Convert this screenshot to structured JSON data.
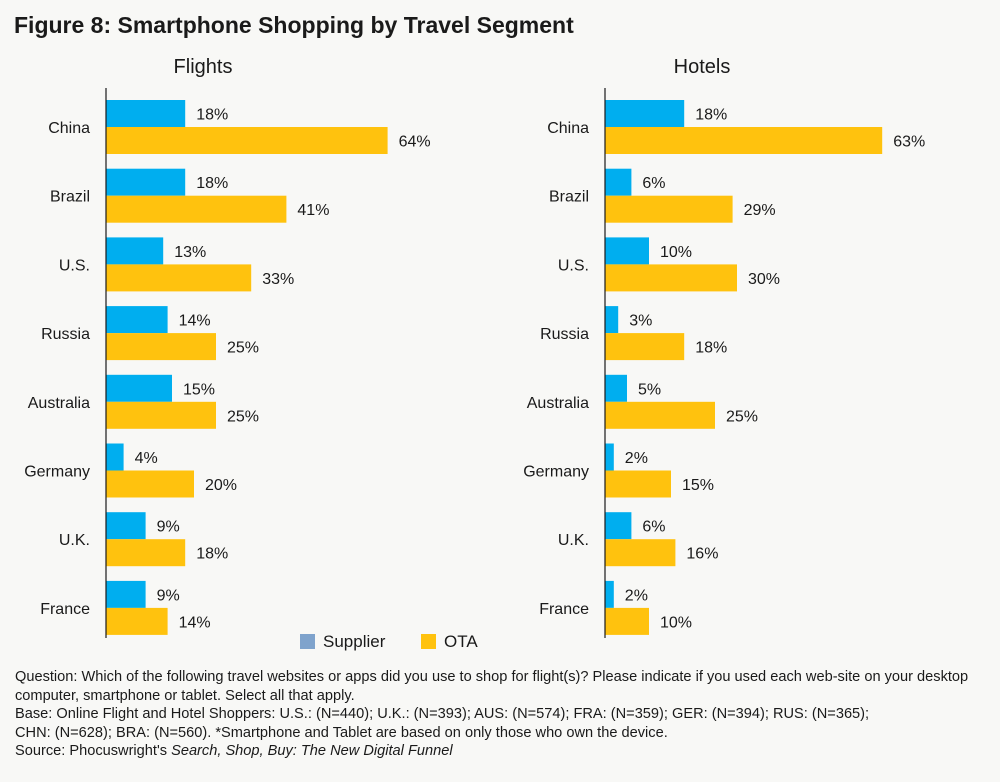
{
  "title": "Figure 8: Smartphone Shopping by Travel Segment",
  "colors": {
    "supplier": "#00AEEF",
    "ota": "#FFC20E",
    "legend_supplier": "#7FA3CC",
    "axis": "#1a1a1a"
  },
  "legend": {
    "supplier": "Supplier",
    "ota": "OTA"
  },
  "chart_data": [
    {
      "type": "bar",
      "orientation": "horizontal",
      "title": "Flights",
      "categories": [
        "China",
        "Brazil",
        "U.S.",
        "Russia",
        "Australia",
        "Germany",
        "U.K.",
        "France"
      ],
      "series": [
        {
          "name": "Supplier",
          "values": [
            18,
            18,
            13,
            14,
            15,
            4,
            9,
            9
          ],
          "labels": [
            "18%",
            "18%",
            "13%",
            "14%",
            "15%",
            "4%",
            "9%",
            "9%"
          ]
        },
        {
          "name": "OTA",
          "values": [
            64,
            41,
            33,
            25,
            25,
            20,
            18,
            14
          ],
          "labels": [
            "64%",
            "41%",
            "33%",
            "25%",
            "25%",
            "20%",
            "18%",
            "14%"
          ]
        }
      ],
      "xlim": [
        0,
        100
      ]
    },
    {
      "type": "bar",
      "orientation": "horizontal",
      "title": "Hotels",
      "categories": [
        "China",
        "Brazil",
        "U.S.",
        "Russia",
        "Australia",
        "Germany",
        "U.K.",
        "France"
      ],
      "series": [
        {
          "name": "Supplier",
          "values": [
            18,
            6,
            10,
            3,
            5,
            2,
            6,
            2
          ],
          "labels": [
            "18%",
            "6%",
            "10%",
            "3%",
            "5%",
            "2%",
            "6%",
            "2%"
          ]
        },
        {
          "name": "OTA",
          "values": [
            63,
            29,
            30,
            18,
            25,
            15,
            16,
            10
          ],
          "labels": [
            "63%",
            "29%",
            "30%",
            "18%",
            "25%",
            "15%",
            "16%",
            "10%"
          ]
        }
      ],
      "xlim": [
        0,
        100
      ]
    }
  ],
  "notes": {
    "question": "Question: Which of the following travel websites or apps did you use to shop for flight(s)? Please indicate if you used each web-site on your desktop computer, smartphone or tablet. Select all that apply.",
    "base_1": "Base: Online Flight and Hotel Shoppers: U.S.: (N=440); U.K.: (N=393); AUS: (N=574); FRA: (N=359); GER: (N=394); RUS: (N=365);",
    "base_2": "CHN: (N=628);  BRA: (N=560). *Smartphone and Tablet are based on only those who own the device.",
    "source_prefix": "Source: Phocuswright's ",
    "source_title": "Search, Shop, Buy: The New Digital Funnel"
  }
}
